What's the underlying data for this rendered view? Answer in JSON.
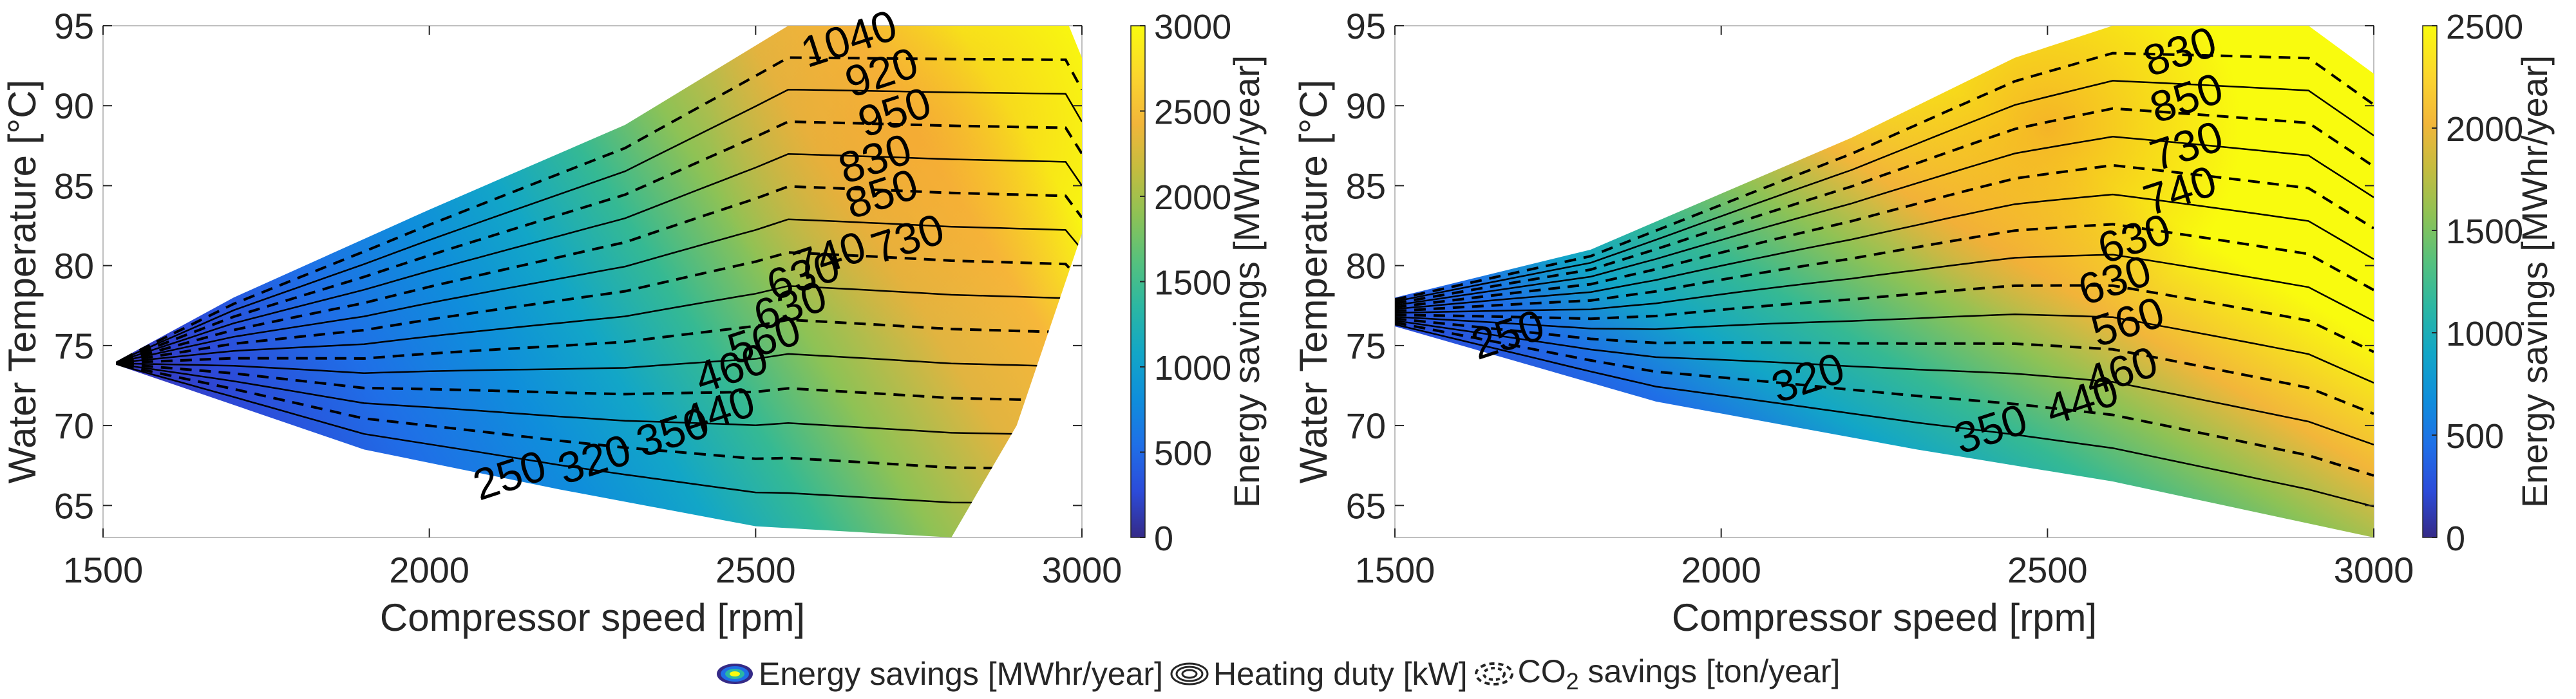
{
  "chart_data": [
    {
      "type": "heatmap",
      "title": "",
      "xlabel": "Compressor speed [rpm]",
      "ylabel": "Water Temperature [°C]",
      "xlim": [
        1500,
        3000
      ],
      "ylim": [
        63,
        95
      ],
      "xticks": [
        "1500",
        "2000",
        "2500",
        "3000"
      ],
      "yticks": [
        "65",
        "70",
        "75",
        "80",
        "85",
        "90",
        "95"
      ],
      "colorbar": {
        "label": "Energy savings [MWhr/year]",
        "range": [
          0,
          3000
        ],
        "ticks": [
          "0",
          "500",
          "1000",
          "1500",
          "2000",
          "2500",
          "3000"
        ],
        "colormap": "parula"
      },
      "region": {
        "upper_edge": [
          [
            1520,
            74
          ],
          [
            1700,
            78
          ],
          [
            2000,
            83.5
          ],
          [
            2300,
            88.8
          ],
          [
            2550,
            95
          ],
          [
            2980,
            95
          ],
          [
            3000,
            93
          ]
        ],
        "lower_edge": [
          [
            1520,
            73.8
          ],
          [
            1900,
            68.5
          ],
          [
            2200,
            66
          ],
          [
            2500,
            63.7
          ],
          [
            2800,
            63
          ]
        ],
        "right_edge": [
          [
            2800,
            63
          ],
          [
            2900,
            70
          ],
          [
            3000,
            82
          ],
          [
            3000,
            93
          ]
        ]
      },
      "contour_labels": {
        "co2_savings_ton_per_year": [
          {
            "text": "250",
            "x": 2130,
            "y": 66
          },
          {
            "text": "320",
            "x": 2260,
            "y": 67
          },
          {
            "text": "440",
            "x": 2450,
            "y": 70
          },
          {
            "text": "560",
            "x": 2520,
            "y": 74.5
          },
          {
            "text": "630",
            "x": 2580,
            "y": 78.5
          },
          {
            "text": "730",
            "x": 2740,
            "y": 80.8
          },
          {
            "text": "830",
            "x": 2690,
            "y": 85.8
          },
          {
            "text": "920",
            "x": 2700,
            "y": 91.2
          }
        ],
        "heating_duty_kW": [
          {
            "text": "350",
            "x": 2380,
            "y": 68.7
          },
          {
            "text": "460",
            "x": 2470,
            "y": 72.7
          },
          {
            "text": "630",
            "x": 2560,
            "y": 76.6
          },
          {
            "text": "740",
            "x": 2620,
            "y": 79.7
          },
          {
            "text": "850",
            "x": 2700,
            "y": 83.6
          },
          {
            "text": "950",
            "x": 2720,
            "y": 88.7
          },
          {
            "text": "1040",
            "x": 2650,
            "y": 93.3
          }
        ]
      }
    },
    {
      "type": "heatmap",
      "title": "",
      "xlabel": "Compressor speed [rpm]",
      "ylabel": "Water Temperature [°C]",
      "xlim": [
        1500,
        3000
      ],
      "ylim": [
        63,
        95
      ],
      "xticks": [
        "1500",
        "2000",
        "2500",
        "3000"
      ],
      "yticks": [
        "65",
        "70",
        "75",
        "80",
        "85",
        "90",
        "95"
      ],
      "colorbar": {
        "label": "Energy savings [MWhr/year]",
        "range": [
          0,
          2500
        ],
        "ticks": [
          "0",
          "500",
          "1000",
          "1500",
          "2000",
          "2500"
        ],
        "colormap": "parula"
      },
      "region": {
        "upper_edge": [
          [
            1500,
            78
          ],
          [
            1800,
            81
          ],
          [
            2200,
            88
          ],
          [
            2450,
            93
          ],
          [
            2600,
            95
          ],
          [
            2900,
            95
          ],
          [
            3000,
            92
          ]
        ],
        "lower_edge": [
          [
            1500,
            76.2
          ],
          [
            1900,
            71.5
          ],
          [
            2300,
            68.5
          ],
          [
            2600,
            66.5
          ],
          [
            3000,
            63
          ]
        ]
      },
      "contour_labels": {
        "co2_savings_ton_per_year": [
          {
            "text": "250",
            "x": 1680,
            "y": 74.8
          },
          {
            "text": "350",
            "x": 2420,
            "y": 68.9
          },
          {
            "text": "460",
            "x": 2620,
            "y": 72.5
          },
          {
            "text": "630",
            "x": 2640,
            "y": 80.8
          },
          {
            "text": "730",
            "x": 2720,
            "y": 86.6
          },
          {
            "text": "830",
            "x": 2710,
            "y": 92.5
          }
        ],
        "heating_duty_kW": [
          {
            "text": "320",
            "x": 2140,
            "y": 72.1
          },
          {
            "text": "440",
            "x": 2560,
            "y": 70.7
          },
          {
            "text": "560",
            "x": 2630,
            "y": 75.6
          },
          {
            "text": "630",
            "x": 2610,
            "y": 78.2
          },
          {
            "text": "740",
            "x": 2710,
            "y": 83.8
          },
          {
            "text": "850",
            "x": 2720,
            "y": 89.6
          }
        ]
      }
    }
  ],
  "legend": {
    "items": [
      {
        "label": "Energy savings [MWhr/year]",
        "swatch": "filled-contour-swatch"
      },
      {
        "label": "Heating duty [kW]",
        "swatch": "solid-contour-swatch"
      },
      {
        "label_main": "CO",
        "label_sub": "2",
        "label_rest": " savings [ton/year]",
        "swatch": "dashed-contour-swatch"
      }
    ]
  },
  "colors": {
    "parula": [
      "#352a87",
      "#2c4bd9",
      "#1f6fe7",
      "#0f8edb",
      "#12a6c7",
      "#2bb7a3",
      "#56c17d",
      "#8ec255",
      "#c4bc3f",
      "#f2b63a",
      "#fbd52e",
      "#f9fb0e"
    ],
    "axis": "#262626",
    "box": "#bfbfbf",
    "contour": "#000000"
  }
}
